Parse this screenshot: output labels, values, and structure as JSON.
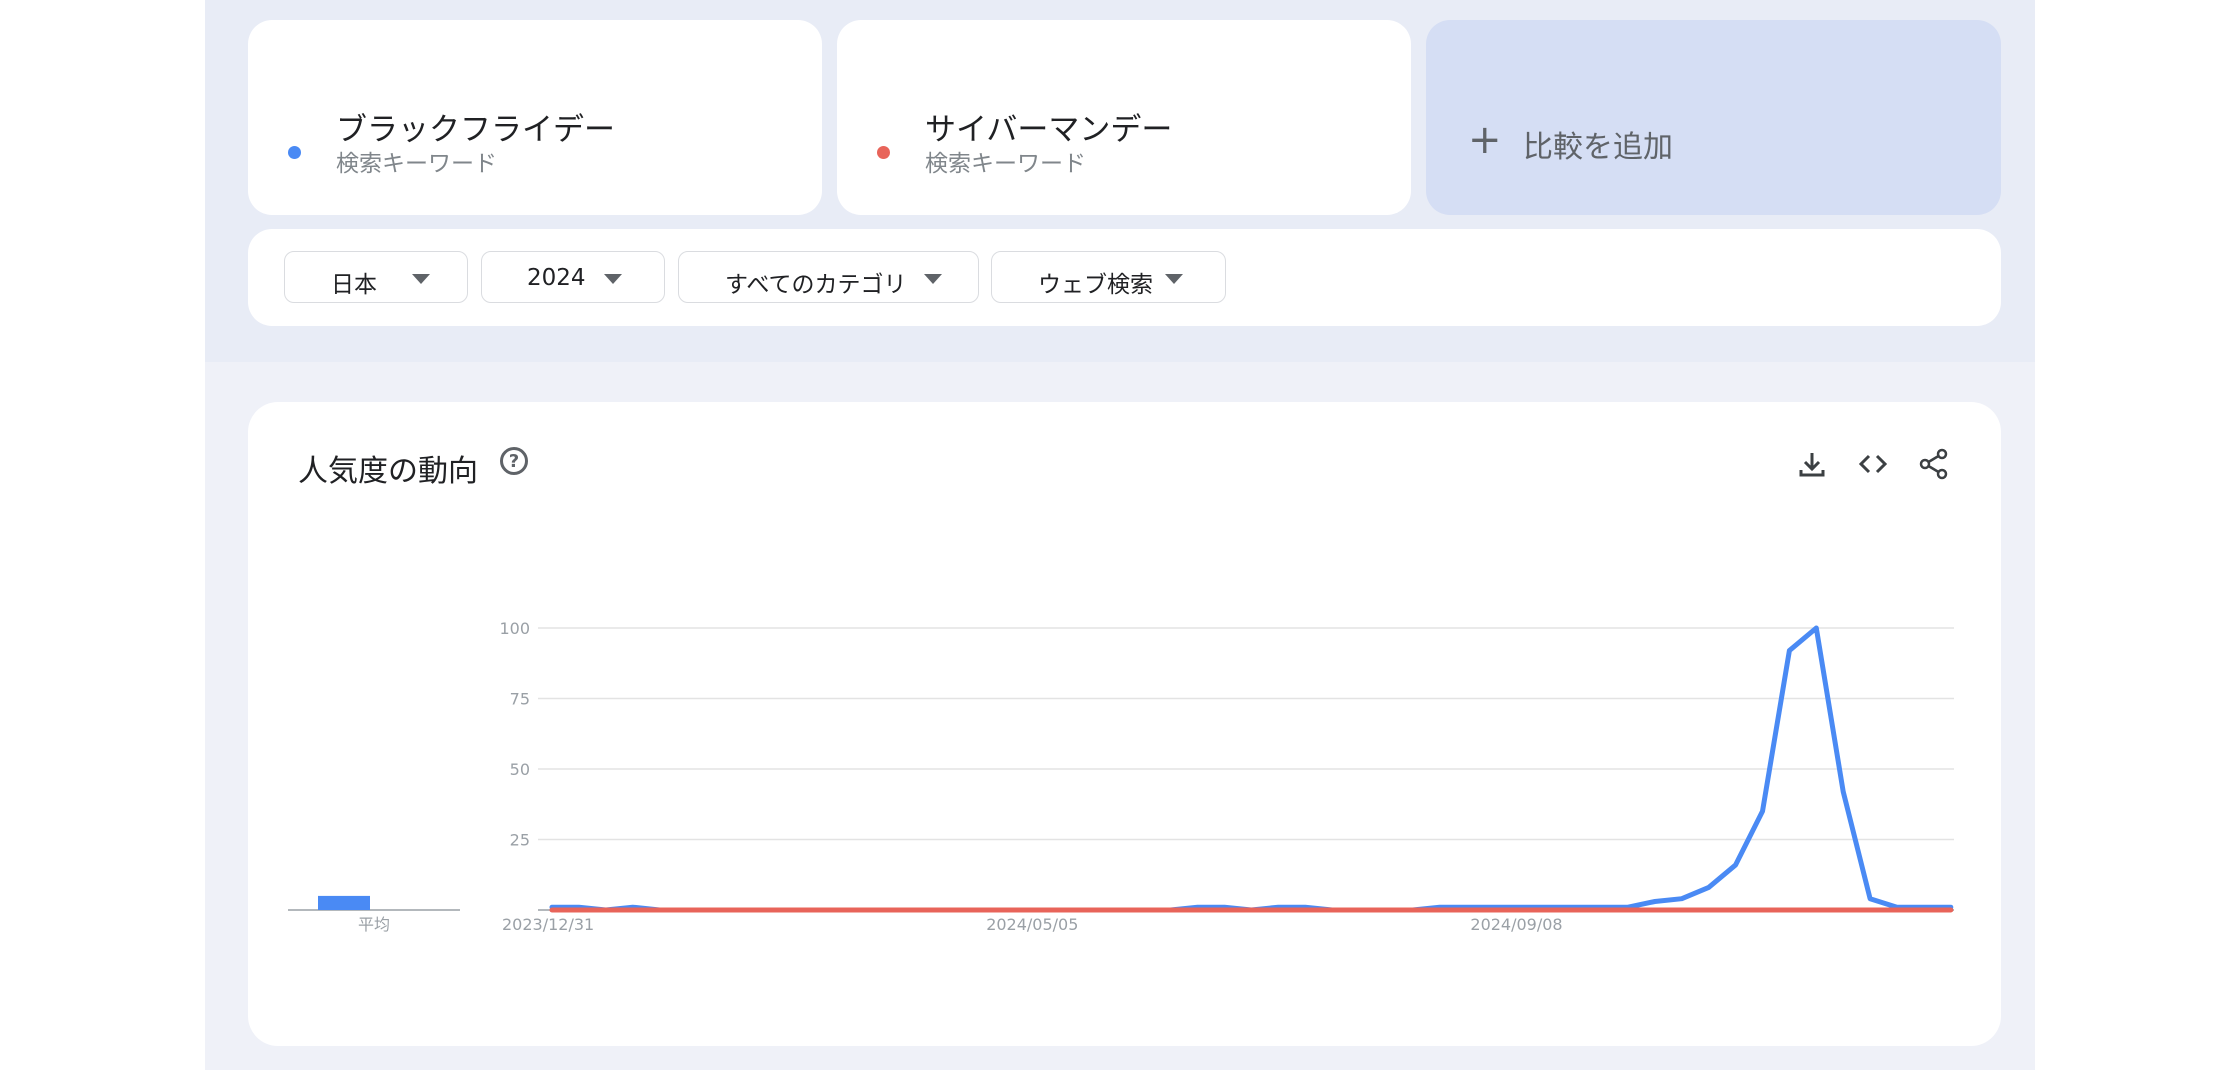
{
  "terms": [
    {
      "name": "ブラックフライデー",
      "kind": "検索キーワード",
      "color": "#4a8af4"
    },
    {
      "name": "サイバーマンデー",
      "kind": "検索キーワード",
      "color": "#e8645a"
    }
  ],
  "add_compare": {
    "label": "比較を追加",
    "icon": "plus-icon"
  },
  "filters": [
    {
      "label": "日本",
      "icon": "caret-down-icon"
    },
    {
      "label": "2024",
      "icon": "caret-down-icon"
    },
    {
      "label": "すべてのカテゴリ",
      "icon": "caret-down-icon"
    },
    {
      "label": "ウェブ検索",
      "icon": "caret-down-icon"
    }
  ],
  "interest_card": {
    "title": "人気度の動向",
    "help_icon": "help-circle-icon",
    "tools": [
      "download-icon",
      "embed-code-icon",
      "share-icon"
    ]
  },
  "chart_data": {
    "type": "line",
    "ylim": [
      0,
      100
    ],
    "yticks": [
      25,
      50,
      75,
      100
    ],
    "ytick_labels": [
      "25",
      "50",
      "75",
      "100"
    ],
    "x_tick_labels": [
      "2023/12/31",
      "2024/05/05",
      "2024/09/08"
    ],
    "x_tick_index": [
      0,
      18,
      36
    ],
    "grid": true,
    "average": {
      "label": "平均",
      "values": [
        5,
        0
      ]
    },
    "series": [
      {
        "name": "ブラックフライデー",
        "color": "#4a8af4",
        "values": [
          1,
          1,
          0,
          1,
          0,
          0,
          0,
          0,
          0,
          0,
          0,
          0,
          0,
          0,
          0,
          0,
          0,
          0,
          0,
          0,
          0,
          0,
          0,
          0,
          1,
          1,
          0,
          1,
          1,
          0,
          0,
          0,
          0,
          1,
          1,
          1,
          1,
          1,
          1,
          1,
          1,
          3,
          4,
          8,
          16,
          35,
          92,
          100,
          42,
          4,
          1,
          1,
          1
        ]
      },
      {
        "name": "サイバーマンデー",
        "color": "#e8645a",
        "values": [
          0,
          0,
          0,
          0,
          0,
          0,
          0,
          0,
          0,
          0,
          0,
          0,
          0,
          0,
          0,
          0,
          0,
          0,
          0,
          0,
          0,
          0,
          0,
          0,
          0,
          0,
          0,
          0,
          0,
          0,
          0,
          0,
          0,
          0,
          0,
          0,
          0,
          0,
          0,
          0,
          0,
          0,
          0,
          0,
          0,
          0,
          0,
          0,
          0,
          0,
          0,
          0,
          0
        ]
      }
    ]
  }
}
